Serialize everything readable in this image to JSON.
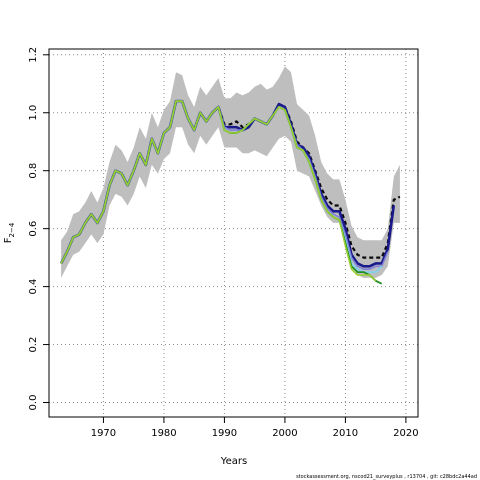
{
  "chart_data": {
    "type": "line",
    "xlabel": "Years",
    "ylabel_main": "F",
    "ylabel_sub": "2−4",
    "xlim": [
      1961,
      2022
    ],
    "ylim": [
      -0.05,
      1.22
    ],
    "x_ticks": [
      1970,
      1980,
      1990,
      2000,
      2010,
      2020
    ],
    "y_ticks": [
      0.0,
      0.2,
      0.4,
      0.6,
      0.8,
      1.0,
      1.2
    ],
    "y_tick_labels": [
      "0.0",
      "0.2",
      "0.4",
      "0.6",
      "0.8",
      "1.0",
      "1.2"
    ],
    "grid": true,
    "grid_style": "dotted",
    "footer": "stockassessment.org, nscod21_surveyplus , r13704 , git: c28bdc2a44ad",
    "confidence_band": {
      "color": "#bebebe",
      "x": [
        1963,
        1964,
        1965,
        1966,
        1967,
        1968,
        1969,
        1970,
        1971,
        1972,
        1973,
        1974,
        1975,
        1976,
        1977,
        1978,
        1979,
        1980,
        1981,
        1982,
        1983,
        1984,
        1985,
        1986,
        1987,
        1988,
        1989,
        1990,
        1991,
        1992,
        1993,
        1994,
        1995,
        1996,
        1997,
        1998,
        1999,
        2000,
        2001,
        2002,
        2003,
        2004,
        2005,
        2006,
        2007,
        2008,
        2009,
        2010,
        2011,
        2012,
        2013,
        2014,
        2015,
        2016,
        2017,
        2018,
        2019
      ],
      "upper": [
        0.56,
        0.59,
        0.65,
        0.66,
        0.69,
        0.73,
        0.69,
        0.74,
        0.83,
        0.89,
        0.87,
        0.83,
        0.88,
        0.95,
        0.91,
        1.0,
        0.95,
        1.01,
        1.04,
        1.14,
        1.13,
        1.06,
        1.02,
        1.09,
        1.06,
        1.09,
        1.12,
        1.05,
        1.05,
        1.07,
        1.06,
        1.07,
        1.09,
        1.1,
        1.08,
        1.09,
        1.12,
        1.16,
        1.14,
        1.03,
        1.01,
        0.99,
        0.92,
        0.83,
        0.79,
        0.77,
        0.77,
        0.7,
        0.61,
        0.57,
        0.56,
        0.56,
        0.56,
        0.56,
        0.6,
        0.78,
        0.82
      ],
      "lower": [
        0.43,
        0.47,
        0.51,
        0.52,
        0.55,
        0.58,
        0.55,
        0.58,
        0.68,
        0.72,
        0.71,
        0.68,
        0.72,
        0.78,
        0.74,
        0.82,
        0.79,
        0.84,
        0.86,
        0.95,
        0.95,
        0.89,
        0.86,
        0.92,
        0.89,
        0.92,
        0.95,
        0.88,
        0.88,
        0.88,
        0.86,
        0.86,
        0.87,
        0.86,
        0.85,
        0.88,
        0.91,
        0.92,
        0.9,
        0.8,
        0.79,
        0.78,
        0.73,
        0.68,
        0.64,
        0.62,
        0.62,
        0.56,
        0.48,
        0.44,
        0.43,
        0.43,
        0.43,
        0.44,
        0.47,
        0.62,
        0.62
      ]
    },
    "series": [
      {
        "color": "#0a0a0a",
        "width": 2.2,
        "dash": "4,3",
        "x": [
          1963,
          1964,
          1965,
          1966,
          1967,
          1968,
          1969,
          1970,
          1971,
          1972,
          1973,
          1974,
          1975,
          1976,
          1977,
          1978,
          1979,
          1980,
          1981,
          1982,
          1983,
          1984,
          1985,
          1986,
          1987,
          1988,
          1989,
          1990,
          1991,
          1992,
          1993,
          1994,
          1995,
          1996,
          1997,
          1998,
          1999,
          2000,
          2001,
          2002,
          2003,
          2004,
          2005,
          2006,
          2007,
          2008,
          2009,
          2010,
          2011,
          2012,
          2013,
          2014,
          2015,
          2016,
          2017,
          2018,
          2019
        ],
        "values": [
          0.48,
          0.52,
          0.57,
          0.58,
          0.62,
          0.65,
          0.62,
          0.66,
          0.75,
          0.8,
          0.79,
          0.75,
          0.8,
          0.86,
          0.82,
          0.91,
          0.86,
          0.93,
          0.95,
          1.04,
          1.04,
          0.98,
          0.94,
          1.0,
          0.97,
          1.0,
          1.02,
          0.96,
          0.96,
          0.97,
          0.95,
          0.96,
          0.98,
          0.97,
          0.96,
          0.99,
          1.03,
          1.02,
          0.97,
          0.9,
          0.88,
          0.86,
          0.8,
          0.74,
          0.7,
          0.68,
          0.68,
          0.62,
          0.54,
          0.51,
          0.5,
          0.5,
          0.5,
          0.5,
          0.55,
          0.7,
          0.71
        ]
      },
      {
        "color": "#1a1a8c",
        "width": 2.6,
        "x": [
          1963,
          1964,
          1965,
          1966,
          1967,
          1968,
          1969,
          1970,
          1971,
          1972,
          1973,
          1974,
          1975,
          1976,
          1977,
          1978,
          1979,
          1980,
          1981,
          1982,
          1983,
          1984,
          1985,
          1986,
          1987,
          1988,
          1989,
          1990,
          1991,
          1992,
          1993,
          1994,
          1995,
          1996,
          1997,
          1998,
          1999,
          2000,
          2001,
          2002,
          2003,
          2004,
          2005,
          2006,
          2007,
          2008,
          2009,
          2010,
          2011,
          2012,
          2013,
          2014,
          2015,
          2016,
          2017,
          2018
        ],
        "values": [
          0.48,
          0.52,
          0.57,
          0.58,
          0.62,
          0.65,
          0.62,
          0.66,
          0.75,
          0.8,
          0.79,
          0.75,
          0.8,
          0.86,
          0.82,
          0.91,
          0.86,
          0.93,
          0.95,
          1.04,
          1.04,
          0.98,
          0.94,
          1.0,
          0.97,
          1.0,
          1.02,
          0.95,
          0.95,
          0.95,
          0.94,
          0.95,
          0.98,
          0.97,
          0.96,
          0.99,
          1.03,
          1.02,
          0.96,
          0.89,
          0.88,
          0.85,
          0.79,
          0.72,
          0.68,
          0.66,
          0.66,
          0.6,
          0.51,
          0.48,
          0.47,
          0.47,
          0.48,
          0.48,
          0.53,
          0.68
        ]
      },
      {
        "color": "#7f7fd9",
        "width": 1.6,
        "x": [
          1963,
          1964,
          1965,
          1966,
          1967,
          1968,
          1969,
          1970,
          1971,
          1972,
          1973,
          1974,
          1975,
          1976,
          1977,
          1978,
          1979,
          1980,
          1981,
          1982,
          1983,
          1984,
          1985,
          1986,
          1987,
          1988,
          1989,
          1990,
          1991,
          1992,
          1993,
          1994,
          1995,
          1996,
          1997,
          1998,
          1999,
          2000,
          2001,
          2002,
          2003,
          2004,
          2005,
          2006,
          2007,
          2008,
          2009,
          2010,
          2011,
          2012,
          2013,
          2014,
          2015,
          2016,
          2017
        ],
        "values": [
          0.48,
          0.52,
          0.57,
          0.58,
          0.62,
          0.65,
          0.62,
          0.66,
          0.75,
          0.8,
          0.79,
          0.75,
          0.8,
          0.86,
          0.82,
          0.91,
          0.86,
          0.93,
          0.95,
          1.04,
          1.04,
          0.98,
          0.94,
          1.0,
          0.97,
          1.0,
          1.02,
          0.95,
          0.94,
          0.94,
          0.94,
          0.96,
          0.98,
          0.97,
          0.96,
          0.99,
          1.02,
          1.01,
          0.95,
          0.89,
          0.87,
          0.84,
          0.78,
          0.71,
          0.67,
          0.65,
          0.64,
          0.58,
          0.5,
          0.47,
          0.46,
          0.46,
          0.47,
          0.47,
          0.52
        ]
      },
      {
        "color": "#87ceeb",
        "width": 2.0,
        "x": [
          1963,
          1964,
          1965,
          1966,
          1967,
          1968,
          1969,
          1970,
          1971,
          1972,
          1973,
          1974,
          1975,
          1976,
          1977,
          1978,
          1979,
          1980,
          1981,
          1982,
          1983,
          1984,
          1985,
          1986,
          1987,
          1988,
          1989,
          1990,
          1991,
          1992,
          1993,
          1994,
          1995,
          1996,
          1997,
          1998,
          1999,
          2000,
          2001,
          2002,
          2003,
          2004,
          2005,
          2006,
          2007,
          2008,
          2009,
          2010,
          2011,
          2012,
          2013,
          2014,
          2015,
          2016
        ],
        "values": [
          0.48,
          0.52,
          0.57,
          0.58,
          0.62,
          0.65,
          0.62,
          0.66,
          0.75,
          0.8,
          0.79,
          0.75,
          0.8,
          0.86,
          0.82,
          0.91,
          0.86,
          0.93,
          0.95,
          1.04,
          1.04,
          0.98,
          0.94,
          1.0,
          0.97,
          1.0,
          1.02,
          0.94,
          0.93,
          0.93,
          0.94,
          0.96,
          0.98,
          0.97,
          0.96,
          0.99,
          1.02,
          1.01,
          0.95,
          0.88,
          0.87,
          0.83,
          0.77,
          0.7,
          0.66,
          0.64,
          0.63,
          0.56,
          0.48,
          0.46,
          0.45,
          0.45,
          0.45,
          0.47
        ]
      },
      {
        "color": "#228b22",
        "width": 1.8,
        "x": [
          1963,
          1964,
          1965,
          1966,
          1967,
          1968,
          1969,
          1970,
          1971,
          1972,
          1973,
          1974,
          1975,
          1976,
          1977,
          1978,
          1979,
          1980,
          1981,
          1982,
          1983,
          1984,
          1985,
          1986,
          1987,
          1988,
          1989,
          1990,
          1991,
          1992,
          1993,
          1994,
          1995,
          1996,
          1997,
          1998,
          1999,
          2000,
          2001,
          2002,
          2003,
          2004,
          2005,
          2006,
          2007,
          2008,
          2009,
          2010,
          2011,
          2012,
          2013,
          2014,
          2015,
          2016
        ],
        "values": [
          0.48,
          0.52,
          0.57,
          0.58,
          0.62,
          0.65,
          0.62,
          0.66,
          0.75,
          0.8,
          0.79,
          0.75,
          0.8,
          0.86,
          0.82,
          0.91,
          0.86,
          0.93,
          0.95,
          1.04,
          1.04,
          0.98,
          0.94,
          1.0,
          0.97,
          1.0,
          1.02,
          0.94,
          0.93,
          0.93,
          0.94,
          0.96,
          0.98,
          0.97,
          0.96,
          0.99,
          1.02,
          1.01,
          0.95,
          0.88,
          0.87,
          0.83,
          0.77,
          0.7,
          0.66,
          0.64,
          0.63,
          0.55,
          0.47,
          0.45,
          0.45,
          0.44,
          0.42,
          0.41
        ]
      },
      {
        "color": "#9acd32",
        "width": 1.6,
        "x": [
          1963,
          1964,
          1965,
          1966,
          1967,
          1968,
          1969,
          1970,
          1971,
          1972,
          1973,
          1974,
          1975,
          1976,
          1977,
          1978,
          1979,
          1980,
          1981,
          1982,
          1983,
          1984,
          1985,
          1986,
          1987,
          1988,
          1989,
          1990,
          1991,
          1992,
          1993,
          1994,
          1995,
          1996,
          1997,
          1998,
          1999,
          2000,
          2001,
          2002,
          2003,
          2004,
          2005,
          2006,
          2007,
          2008,
          2009,
          2010,
          2011,
          2012,
          2013,
          2014,
          2015
        ],
        "values": [
          0.48,
          0.52,
          0.57,
          0.58,
          0.62,
          0.65,
          0.62,
          0.66,
          0.75,
          0.8,
          0.79,
          0.75,
          0.8,
          0.86,
          0.82,
          0.91,
          0.86,
          0.93,
          0.95,
          1.04,
          1.04,
          0.98,
          0.94,
          1.0,
          0.97,
          1.0,
          1.02,
          0.94,
          0.93,
          0.93,
          0.94,
          0.96,
          0.98,
          0.97,
          0.96,
          0.99,
          1.02,
          1.01,
          0.95,
          0.88,
          0.87,
          0.83,
          0.77,
          0.7,
          0.66,
          0.64,
          0.63,
          0.54,
          0.46,
          0.44,
          0.44,
          0.44,
          0.42
        ]
      }
    ]
  }
}
